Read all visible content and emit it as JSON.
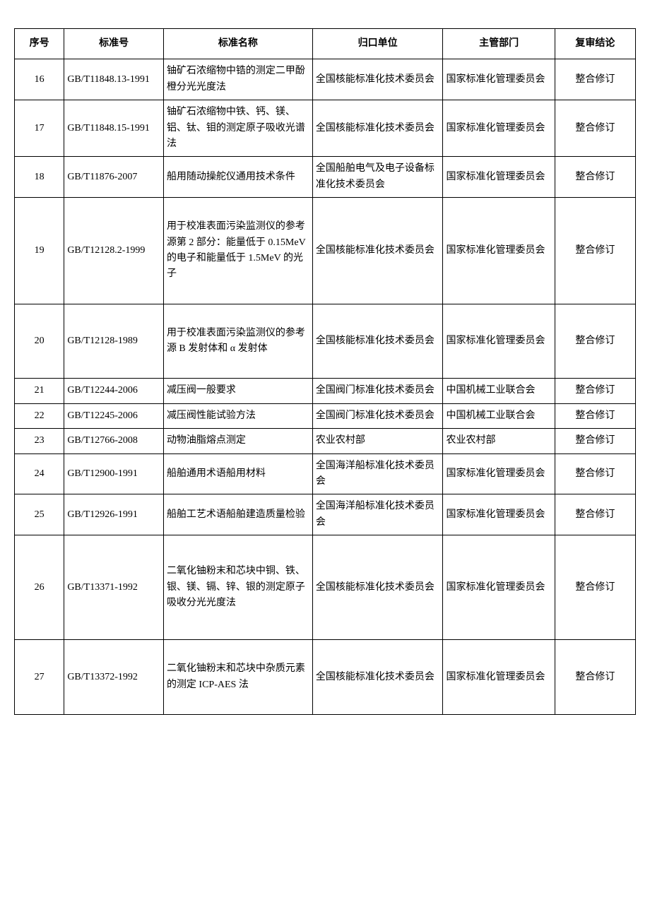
{
  "table": {
    "columns": [
      "序号",
      "标准号",
      "标准名称",
      "归口单位",
      "主管部门",
      "复审结论"
    ],
    "rows": [
      {
        "seq": "16",
        "code": "GB/T11848.13-1991",
        "name": "铀矿石浓缩物中锆的测定二甲酚橙分光光度法",
        "unit": "全国核能标准化技术委员会",
        "dept": "国家标准化管理委员会",
        "result": "整合修订",
        "h": ""
      },
      {
        "seq": "17",
        "code": "GB/T11848.15-1991",
        "name": "铀矿石浓缩物中铁、钙、镁、铝、钛、钼的测定原子吸收光谱法",
        "unit": "全国核能标准化技术委员会",
        "dept": "国家标准化管理委员会",
        "result": "整合修订",
        "h": ""
      },
      {
        "seq": "18",
        "code": "GB/T11876-2007",
        "name": "船用随动操舵仪通用技术条件",
        "unit": "全国船舶电气及电子设备标准化技术委员会",
        "dept": "国家标准化管理委员会",
        "result": "整合修订",
        "h": ""
      },
      {
        "seq": "19",
        "code": "GB/T12128.2-1999",
        "name": "用于校准表面污染监测仪的参考源第 2 部分：能量低于 0.15MeV 的电子和能量低于 1.5MeV 的光子",
        "unit": "全国核能标准化技术委员会",
        "dept": "国家标准化管理委员会",
        "result": "整合修订",
        "h": "tall"
      },
      {
        "seq": "20",
        "code": "GB/T12128-1989",
        "name": "用于校准表面污染监测仪的参考源 B 发射体和 α 发射体",
        "unit": "全国核能标准化技术委员会",
        "dept": "国家标准化管理委员会",
        "result": "整合修订",
        "h": "tall"
      },
      {
        "seq": "21",
        "code": "GB/T12244-2006",
        "name": "减压阀一般要求",
        "unit": "全国阀门标准化技术委员会",
        "dept": "中国机械工业联合会",
        "result": "整合修订",
        "h": ""
      },
      {
        "seq": "22",
        "code": "GB/T12245-2006",
        "name": "减压阀性能试验方法",
        "unit": "全国阀门标准化技术委员会",
        "dept": "中国机械工业联合会",
        "result": "整合修订",
        "h": ""
      },
      {
        "seq": "23",
        "code": "GB/T12766-2008",
        "name": "动物油脂熔点测定",
        "unit": "农业农村部",
        "dept": "农业农村部",
        "result": "整合修订",
        "h": ""
      },
      {
        "seq": "24",
        "code": "GB/T12900-1991",
        "name": "船舶通用术语船用材料",
        "unit": "全国海洋船标准化技术委员会",
        "dept": "国家标准化管理委员会",
        "result": "整合修订",
        "h": ""
      },
      {
        "seq": "25",
        "code": "GB/T12926-1991",
        "name": "船舶工艺术语船舶建造质量检验",
        "unit": "全国海洋船标准化技术委员会",
        "dept": "国家标准化管理委员会",
        "result": "整合修订",
        "h": ""
      },
      {
        "seq": "26",
        "code": "GB/T13371-1992",
        "name": "二氧化铀粉末和芯块中铜、铁、银、镁、镉、锌、银的测定原子吸收分光光度法",
        "unit": "全国核能标准化技术委员会",
        "dept": "国家标准化管理委员会",
        "result": "整合修订",
        "h": "xtall"
      },
      {
        "seq": "27",
        "code": "GB/T13372-1992",
        "name": "二氧化铀粉末和芯块中杂质元素的测定 ICP-AES 法",
        "unit": "全国核能标准化技术委员会",
        "dept": "国家标准化管理委员会",
        "result": "整合修订",
        "h": "tall"
      }
    ]
  }
}
